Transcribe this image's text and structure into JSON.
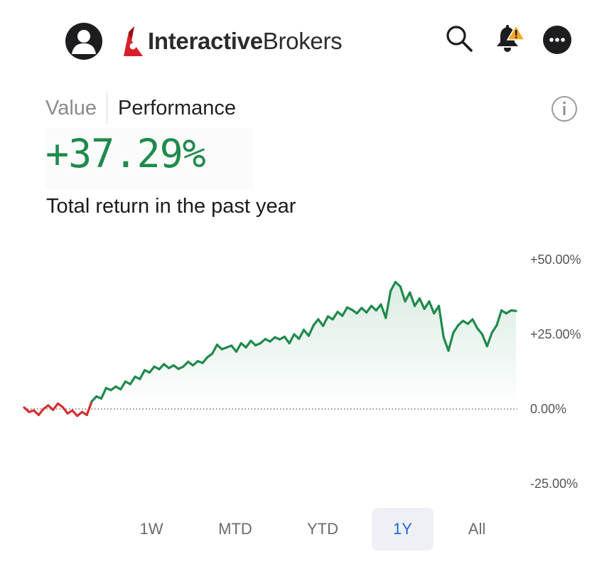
{
  "header": {
    "brand_bold": "Interactive",
    "brand_regular": "Brokers",
    "icons": [
      "user-avatar-icon",
      "search-icon",
      "bell-alert-icon",
      "more-icon"
    ]
  },
  "tabs": [
    {
      "label": "Value",
      "active": false
    },
    {
      "label": "Performance",
      "active": true
    }
  ],
  "summary": {
    "total_return": "+37.29%",
    "description": "Total return in the past year"
  },
  "colors": {
    "positive": "#1f8a4c",
    "negative": "#d32f2f",
    "active_range": "#1d66d8",
    "brand_red": "#d81e28"
  },
  "ranges": [
    {
      "label": "1W",
      "active": false
    },
    {
      "label": "MTD",
      "active": false
    },
    {
      "label": "YTD",
      "active": false
    },
    {
      "label": "1Y",
      "active": true
    },
    {
      "label": "All",
      "active": false
    }
  ],
  "chart_data": {
    "type": "area",
    "ylim": [
      -25,
      50
    ],
    "yticks": [
      "+50.00%",
      "+25.00%",
      "0.00%",
      "-25.00%"
    ],
    "ytick_values": [
      50,
      25,
      0,
      -25
    ],
    "baseline": 0,
    "series": [
      {
        "values": [
          0.5,
          -1.0,
          -0.5,
          -2.0,
          0.0,
          1.2,
          -0.3,
          1.8,
          0.6,
          -1.5,
          -0.5,
          -2.3,
          -1.0,
          -2.0,
          2.5,
          4.2,
          3.5,
          7.0,
          6.3,
          7.5,
          6.6,
          9.2,
          8.3,
          10.8,
          10.0,
          13.0,
          12.2,
          14.2,
          13.3,
          15.0,
          13.7,
          14.6,
          13.4,
          14.2,
          15.8,
          14.6,
          16.0,
          15.4,
          17.3,
          18.5,
          21.5,
          20.0,
          20.6,
          21.2,
          19.2,
          22.0,
          20.6,
          22.8,
          21.3,
          22.0,
          23.4,
          22.6,
          24.0,
          23.3,
          24.2,
          22.0,
          25.0,
          23.5,
          26.5,
          24.5,
          28.0,
          30.0,
          27.8,
          31.0,
          30.0,
          32.5,
          31.2,
          34.0,
          33.2,
          32.0,
          33.8,
          32.3,
          34.5,
          33.0,
          35.0,
          30.5,
          39.5,
          42.5,
          41.0,
          36.0,
          39.0,
          34.5,
          37.0,
          33.5,
          36.0,
          32.0,
          34.5,
          24.0,
          19.5,
          25.5,
          28.0,
          29.5,
          28.5,
          30.0,
          27.0,
          25.0,
          21.0,
          25.5,
          28.0,
          33.0,
          32.0,
          33.0,
          32.8
        ]
      }
    ]
  }
}
